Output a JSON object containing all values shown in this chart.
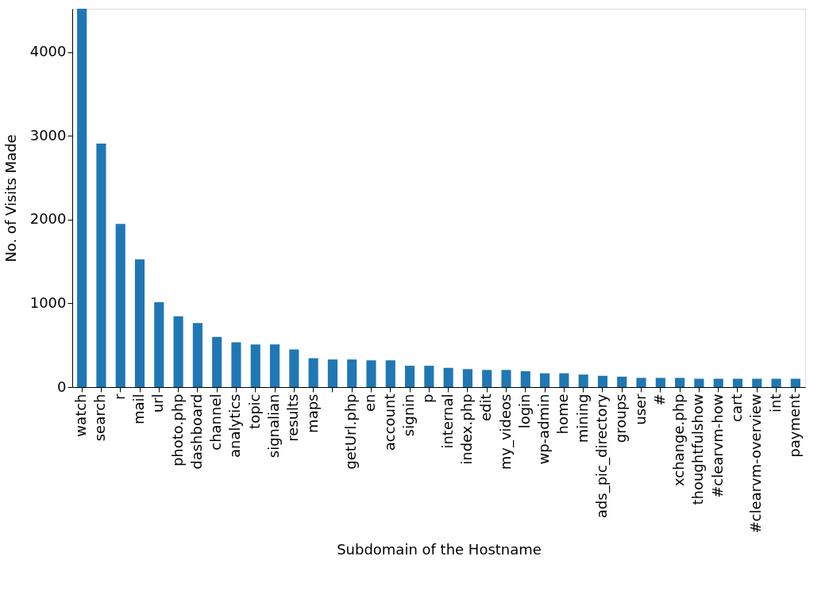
{
  "chart_data": {
    "type": "bar",
    "xlabel": "Subdomain of the Hostname",
    "ylabel": "No. of Visits Made",
    "categories": [
      "watch",
      "search",
      "r",
      "mail",
      "url",
      "photo.php",
      "dashboard",
      "channel",
      "analytics",
      "topic",
      "signalian",
      "results",
      "maps",
      null,
      "getUrl.php",
      "en",
      "account",
      "signin",
      "p",
      "internal",
      "index.php",
      "edit",
      "my_videos",
      "login",
      "wp-admin",
      "home",
      "mining",
      "ads_pic_directory",
      "groups",
      "user",
      "#",
      "xchange.php",
      "thoughtfulshow",
      "#clearvm-how",
      "cart",
      "#clearvm-overview",
      "int",
      "payment"
    ],
    "values": [
      4520,
      2910,
      1950,
      1525,
      1015,
      845,
      765,
      600,
      535,
      510,
      510,
      450,
      345,
      330,
      330,
      320,
      320,
      255,
      255,
      230,
      215,
      205,
      205,
      190,
      165,
      165,
      150,
      135,
      125,
      110,
      110,
      110,
      100,
      100,
      100,
      100,
      100,
      100
    ],
    "color": "#1f77b4",
    "ylim": [
      0,
      4520
    ],
    "yticks": [
      0,
      1000,
      2000,
      3000,
      4000
    ],
    "grid": false
  }
}
